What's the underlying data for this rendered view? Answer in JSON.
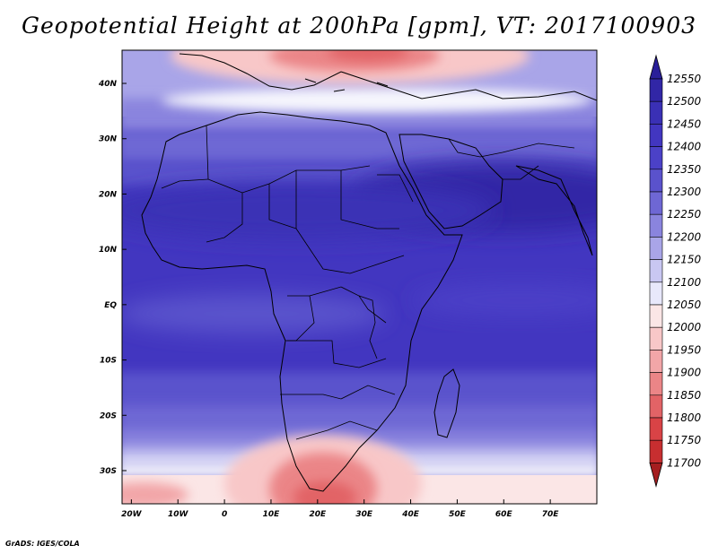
{
  "title": "Geopotential Height at 200hPa [gpm], VT: 2017100903",
  "footer": "GrADS: IGES/COLA",
  "lat_labels": [
    "40N",
    "30N",
    "20N",
    "10N",
    "EQ",
    "10S",
    "20S",
    "30S"
  ],
  "lat_values": [
    40,
    30,
    20,
    10,
    0,
    -10,
    -20,
    -30
  ],
  "lon_labels": [
    "20W",
    "10W",
    "0",
    "10E",
    "20E",
    "30E",
    "40E",
    "50E",
    "60E",
    "70E"
  ],
  "lon_values": [
    -20,
    -10,
    0,
    10,
    20,
    30,
    40,
    50,
    60,
    70
  ],
  "map_extent": {
    "lon_min": -22,
    "lon_max": 80,
    "lat_min": -36,
    "lat_max": 46
  },
  "colorbar": {
    "levels": [
      "12550",
      "12500",
      "12450",
      "12400",
      "12350",
      "12300",
      "12250",
      "12200",
      "12150",
      "12100",
      "12050",
      "12000",
      "11950",
      "11900",
      "11850",
      "11800",
      "11750",
      "11700"
    ],
    "colors": [
      "#2a1f99",
      "#3126a6",
      "#3a30b5",
      "#4236c0",
      "#4b41c7",
      "#5a52cc",
      "#6e67d4",
      "#8a84de",
      "#a9a5e8",
      "#c9c7f2",
      "#e8e8fb",
      "#fbe6e6",
      "#f8c7c8",
      "#f2a6a8",
      "#eb8587",
      "#e26366",
      "#d94346",
      "#c72e30",
      "#a51e20"
    ]
  },
  "field_colors": {
    "deep": "#3126a6",
    "mid": "#4236c0",
    "light": "#6e67d4",
    "pale": "#a9a5e8",
    "paler": "#c9c7f2",
    "white": "#f6f6fd",
    "pink": "#f8c7c8",
    "red": "#e26366"
  }
}
